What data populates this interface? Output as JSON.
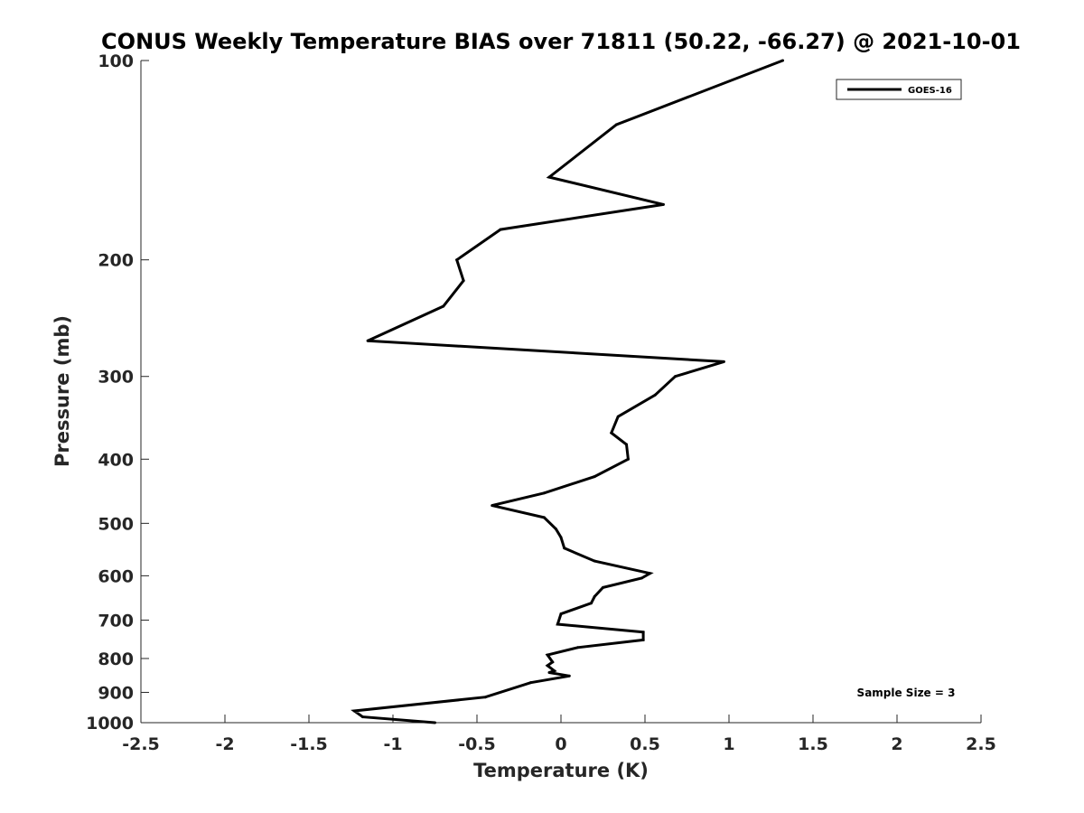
{
  "chart_data": {
    "type": "line",
    "title": "CONUS Weekly Temperature BIAS over 71811 (50.22, -66.27) @ 2021-10-01",
    "xlabel": "Temperature (K)",
    "ylabel": "Pressure (mb)",
    "xlim": [
      -2.5,
      2.5
    ],
    "ylim": [
      100,
      1000
    ],
    "y_scale": "log",
    "y_reversed": true,
    "xticks": [
      "-2.5",
      "-2",
      "-1.5",
      "-1",
      "-0.5",
      "0",
      "0.5",
      "1",
      "1.5",
      "2",
      "2.5"
    ],
    "yticks": [
      "100",
      "200",
      "300",
      "400",
      "500",
      "600",
      "700",
      "800",
      "900",
      "1000"
    ],
    "grid": false,
    "legend_position": "top-right",
    "annotation": "Sample Size = 3",
    "series": [
      {
        "name": "GOES-16",
        "color": "#000000",
        "points": [
          {
            "x": 1.32,
            "y": 100
          },
          {
            "x": 0.33,
            "y": 125
          },
          {
            "x": -0.07,
            "y": 150
          },
          {
            "x": 0.61,
            "y": 165
          },
          {
            "x": -0.36,
            "y": 180
          },
          {
            "x": -0.62,
            "y": 200
          },
          {
            "x": -0.58,
            "y": 215
          },
          {
            "x": -0.7,
            "y": 235
          },
          {
            "x": -1.15,
            "y": 265
          },
          {
            "x": 0.97,
            "y": 285
          },
          {
            "x": 0.68,
            "y": 300
          },
          {
            "x": 0.56,
            "y": 320
          },
          {
            "x": 0.34,
            "y": 345
          },
          {
            "x": 0.3,
            "y": 365
          },
          {
            "x": 0.39,
            "y": 380
          },
          {
            "x": 0.4,
            "y": 400
          },
          {
            "x": 0.2,
            "y": 425
          },
          {
            "x": -0.1,
            "y": 450
          },
          {
            "x": -0.41,
            "y": 470
          },
          {
            "x": -0.1,
            "y": 490
          },
          {
            "x": -0.03,
            "y": 510
          },
          {
            "x": 0.0,
            "y": 525
          },
          {
            "x": 0.02,
            "y": 545
          },
          {
            "x": 0.2,
            "y": 570
          },
          {
            "x": 0.53,
            "y": 595
          },
          {
            "x": 0.48,
            "y": 605
          },
          {
            "x": 0.25,
            "y": 625
          },
          {
            "x": 0.2,
            "y": 645
          },
          {
            "x": 0.18,
            "y": 660
          },
          {
            "x": 0.0,
            "y": 685
          },
          {
            "x": -0.02,
            "y": 710
          },
          {
            "x": 0.49,
            "y": 730
          },
          {
            "x": 0.49,
            "y": 750
          },
          {
            "x": 0.1,
            "y": 770
          },
          {
            "x": -0.08,
            "y": 790
          },
          {
            "x": -0.05,
            "y": 810
          },
          {
            "x": -0.08,
            "y": 820
          },
          {
            "x": -0.04,
            "y": 835
          },
          {
            "x": -0.07,
            "y": 840
          },
          {
            "x": 0.05,
            "y": 850
          },
          {
            "x": -0.18,
            "y": 870
          },
          {
            "x": -0.45,
            "y": 915
          },
          {
            "x": -1.23,
            "y": 960
          },
          {
            "x": -1.18,
            "y": 980
          },
          {
            "x": -0.75,
            "y": 1000
          }
        ]
      }
    ]
  }
}
